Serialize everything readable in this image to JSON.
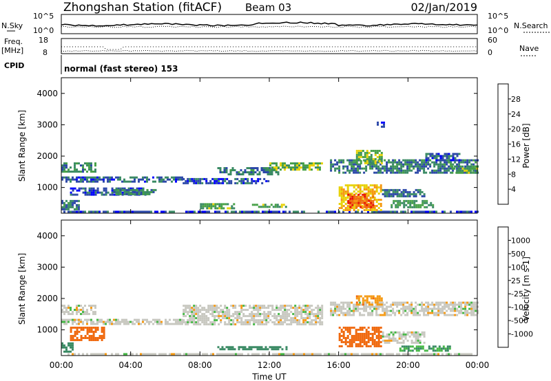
{
  "header": {
    "station": "Zhongshan Station (fitACF)",
    "beam": "Beam 03",
    "date": "02/Jan/2019"
  },
  "strip_labels": {
    "nsky": "N.Sky",
    "nsearch": "N.Search",
    "freq": "Freq.",
    "freq_unit": "[MHz]",
    "nave": "Nave",
    "cpid": "CPID",
    "cpid_text": "normal (fast stereo) 153"
  },
  "noise_panel": {
    "left_ticks": [
      "10^5",
      "10^0"
    ],
    "right_ticks": [
      "10^5",
      "10^0"
    ]
  },
  "freq_panel": {
    "left_ticks": [
      "18",
      "8"
    ],
    "right_ticks": [
      "60",
      "0"
    ]
  },
  "colors": {
    "power_scale": [
      "#0000ff",
      "#2c48a8",
      "#3a8a64",
      "#46a046",
      "#e8d20a",
      "#f59a14",
      "#f06a10",
      "#e8100a"
    ],
    "velocity_scale": [
      "#e8100a",
      "#f06a10",
      "#f59a14",
      "#c8c8c0",
      "#c8c8c0",
      "#46b846",
      "#3a8a64",
      "#2c48a8",
      "#0000ff"
    ],
    "ground_grey": "#c8c8c0"
  },
  "chart_data": [
    {
      "type": "heatmap",
      "panel": "power",
      "ylabel": "Slant Range [km]",
      "yticks": [
        "1000",
        "2000",
        "3000",
        "4000"
      ],
      "ylim": [
        180,
        4500
      ],
      "xlim": [
        0,
        24
      ],
      "colorbar": {
        "label": "Power [dB]",
        "ticks": [
          "4",
          "8",
          "12",
          "16",
          "20",
          "24",
          "28"
        ],
        "range": [
          0,
          32
        ]
      },
      "regions": [
        {
          "x0": 0.0,
          "x1": 24.0,
          "y0": 200,
          "y1": 260,
          "v": 6
        },
        {
          "x0": 0.0,
          "x1": 2.0,
          "y0": 1500,
          "y1": 1800,
          "v": 10
        },
        {
          "x0": 0.0,
          "x1": 7.0,
          "y0": 1200,
          "y1": 1350,
          "v": 7
        },
        {
          "x0": 0.5,
          "x1": 5.0,
          "y0": 800,
          "y1": 1000,
          "v": 6
        },
        {
          "x0": 0.0,
          "x1": 1.0,
          "y0": 300,
          "y1": 600,
          "v": 9
        },
        {
          "x0": 3.0,
          "x1": 5.5,
          "y0": 800,
          "y1": 950,
          "v": 10
        },
        {
          "x0": 7.0,
          "x1": 12.0,
          "y0": 1150,
          "y1": 1300,
          "v": 6
        },
        {
          "x0": 9.0,
          "x1": 12.5,
          "y0": 1450,
          "y1": 1650,
          "v": 9
        },
        {
          "x0": 12.0,
          "x1": 15.0,
          "y0": 1550,
          "y1": 1800,
          "v": 14
        },
        {
          "x0": 8.0,
          "x1": 10.0,
          "y0": 350,
          "y1": 500,
          "v": 13
        },
        {
          "x0": 11.0,
          "x1": 13.0,
          "y0": 350,
          "y1": 480,
          "v": 13
        },
        {
          "x0": 15.5,
          "x1": 24.0,
          "y0": 1500,
          "y1": 1900,
          "v": 9
        },
        {
          "x0": 16.0,
          "x1": 18.5,
          "y0": 300,
          "y1": 1100,
          "v": 20
        },
        {
          "x0": 16.5,
          "x1": 18.0,
          "y0": 400,
          "y1": 800,
          "v": 26
        },
        {
          "x0": 18.5,
          "x1": 21.0,
          "y0": 700,
          "y1": 950,
          "v": 8
        },
        {
          "x0": 17.0,
          "x1": 18.5,
          "y0": 1800,
          "y1": 2200,
          "v": 15
        },
        {
          "x0": 19.0,
          "x1": 21.5,
          "y0": 350,
          "y1": 600,
          "v": 12
        },
        {
          "x0": 22.5,
          "x1": 24.0,
          "y0": 1450,
          "y1": 1700,
          "v": 13
        },
        {
          "x0": 21.0,
          "x1": 23.0,
          "y0": 1900,
          "y1": 2100,
          "v": 7
        },
        {
          "x0": 18.2,
          "x1": 18.6,
          "y0": 2950,
          "y1": 3100,
          "v": 6
        }
      ]
    },
    {
      "type": "heatmap",
      "panel": "velocity",
      "ylabel": "Slant Range [km]",
      "xlabel": "Time UT",
      "yticks": [
        "1000",
        "2000",
        "3000",
        "4000"
      ],
      "xticks": [
        "00:00",
        "04:00",
        "08:00",
        "12:00",
        "16:00",
        "20:00",
        "00:00"
      ],
      "ylim": [
        180,
        4500
      ],
      "xlim": [
        0,
        24
      ],
      "colorbar": {
        "label": "Velocity [m s-1]",
        "ticks": [
          "1000",
          "500",
          "100",
          "25",
          "-25",
          "-100",
          "-500",
          "-1000"
        ],
        "range": [
          -1000,
          1000
        ]
      },
      "regions": [
        {
          "x0": 0.0,
          "x1": 24.0,
          "y0": 200,
          "y1": 260,
          "v": 0
        },
        {
          "x0": 0.0,
          "x1": 2.0,
          "y0": 1500,
          "y1": 1800,
          "v": 0
        },
        {
          "x0": 0.0,
          "x1": 7.0,
          "y0": 1200,
          "y1": 1350,
          "v": 0
        },
        {
          "x0": 0.5,
          "x1": 2.5,
          "y0": 700,
          "y1": 1100,
          "v": -200
        },
        {
          "x0": 0.0,
          "x1": 0.6,
          "y0": 300,
          "y1": 600,
          "v": 300
        },
        {
          "x0": 7.0,
          "x1": 15.0,
          "y0": 1150,
          "y1": 1800,
          "v": 0
        },
        {
          "x0": 9.0,
          "x1": 13.0,
          "y0": 350,
          "y1": 480,
          "v": 150
        },
        {
          "x0": 15.5,
          "x1": 24.0,
          "y0": 1500,
          "y1": 1900,
          "v": 0
        },
        {
          "x0": 16.0,
          "x1": 18.5,
          "y0": 450,
          "y1": 1100,
          "v": -250
        },
        {
          "x0": 17.0,
          "x1": 18.5,
          "y0": 1800,
          "y1": 2100,
          "v": -80
        },
        {
          "x0": 18.5,
          "x1": 21.0,
          "y0": 600,
          "y1": 950,
          "v": 0
        },
        {
          "x0": 19.5,
          "x1": 22.5,
          "y0": 350,
          "y1": 500,
          "v": 110
        }
      ]
    }
  ]
}
